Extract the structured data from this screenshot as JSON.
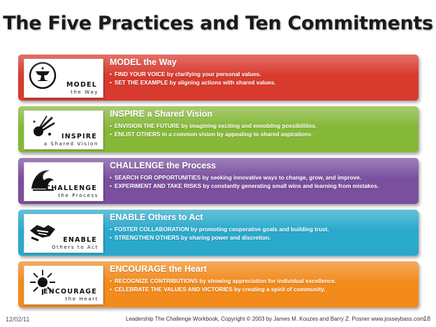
{
  "title": "The Five Practices and Ten Commitments",
  "practices": [
    {
      "logo_word": "MODEL",
      "logo_sub": "the Way",
      "heading": "MODEL the Way",
      "color": "#d83a2e",
      "icon": "anvil-icon",
      "bullets": [
        {
          "lead": "FIND YOUR VOICE",
          "rest": " by clarifying your personal values."
        },
        {
          "lead": "SET THE EXAMPLE",
          "rest": " by aligning actions with shared values."
        }
      ]
    },
    {
      "logo_word": "INSPIRE",
      "logo_sub": "a Shared Vision",
      "heading": "INSPIRE a Shared Vision",
      "color": "#86b838",
      "icon": "comet-icon",
      "bullets": [
        {
          "lead": "ENVISION THE FUTURE",
          "rest": " by imagining exciting and ennobling possibilities."
        },
        {
          "lead": "ENLIST OTHERS",
          "rest": " in a common vision by appealing to shared aspirations"
        }
      ]
    },
    {
      "logo_word": "CHALLENGE",
      "logo_sub": "the Process",
      "heading": "CHALLENGE the Process",
      "color": "#7a4f9e",
      "icon": "wave-icon",
      "bullets": [
        {
          "lead": "SEARCH FOR OPPORTUNITIES",
          "rest": " by seeking innovative ways to change, grow, and improve."
        },
        {
          "lead": "EXPERIMENT AND TAKE RISKS",
          "rest": " by constantly generating small wins and learning from mistakes."
        }
      ]
    },
    {
      "logo_word": "ENABLE",
      "logo_sub": "Others to Act",
      "heading": "ENABLE Others to Act",
      "color": "#2aa9cc",
      "icon": "handshake-icon",
      "bullets": [
        {
          "lead": "FOSTER COLLABORATION",
          "rest": " by promoting cooperative goals and building trust."
        },
        {
          "lead": "STRENGTHEN OTHERS",
          "rest": " by sharing power and discretion."
        }
      ]
    },
    {
      "logo_word": "ENCOURAGE",
      "logo_sub": "the Heart",
      "heading": "ENCOURAGE the Heart",
      "color": "#f28a1c",
      "icon": "sunburst-icon",
      "bullets": [
        {
          "lead": "RECOGNIZE CONTRIBUTIONS",
          "rest": " by showing appreciation for individual excellence."
        },
        {
          "lead": "CELEBRATE THE VALUES AND VICTORIES",
          "rest": " by creating a spirit of community."
        }
      ]
    }
  ],
  "footer": {
    "date": "12/02/11",
    "credit": "Leadership The Challenge Workbook, Copyright © 2003 by James M. Kouzes and Barry Z. Posner www.josseybass.com",
    "page": "18"
  }
}
